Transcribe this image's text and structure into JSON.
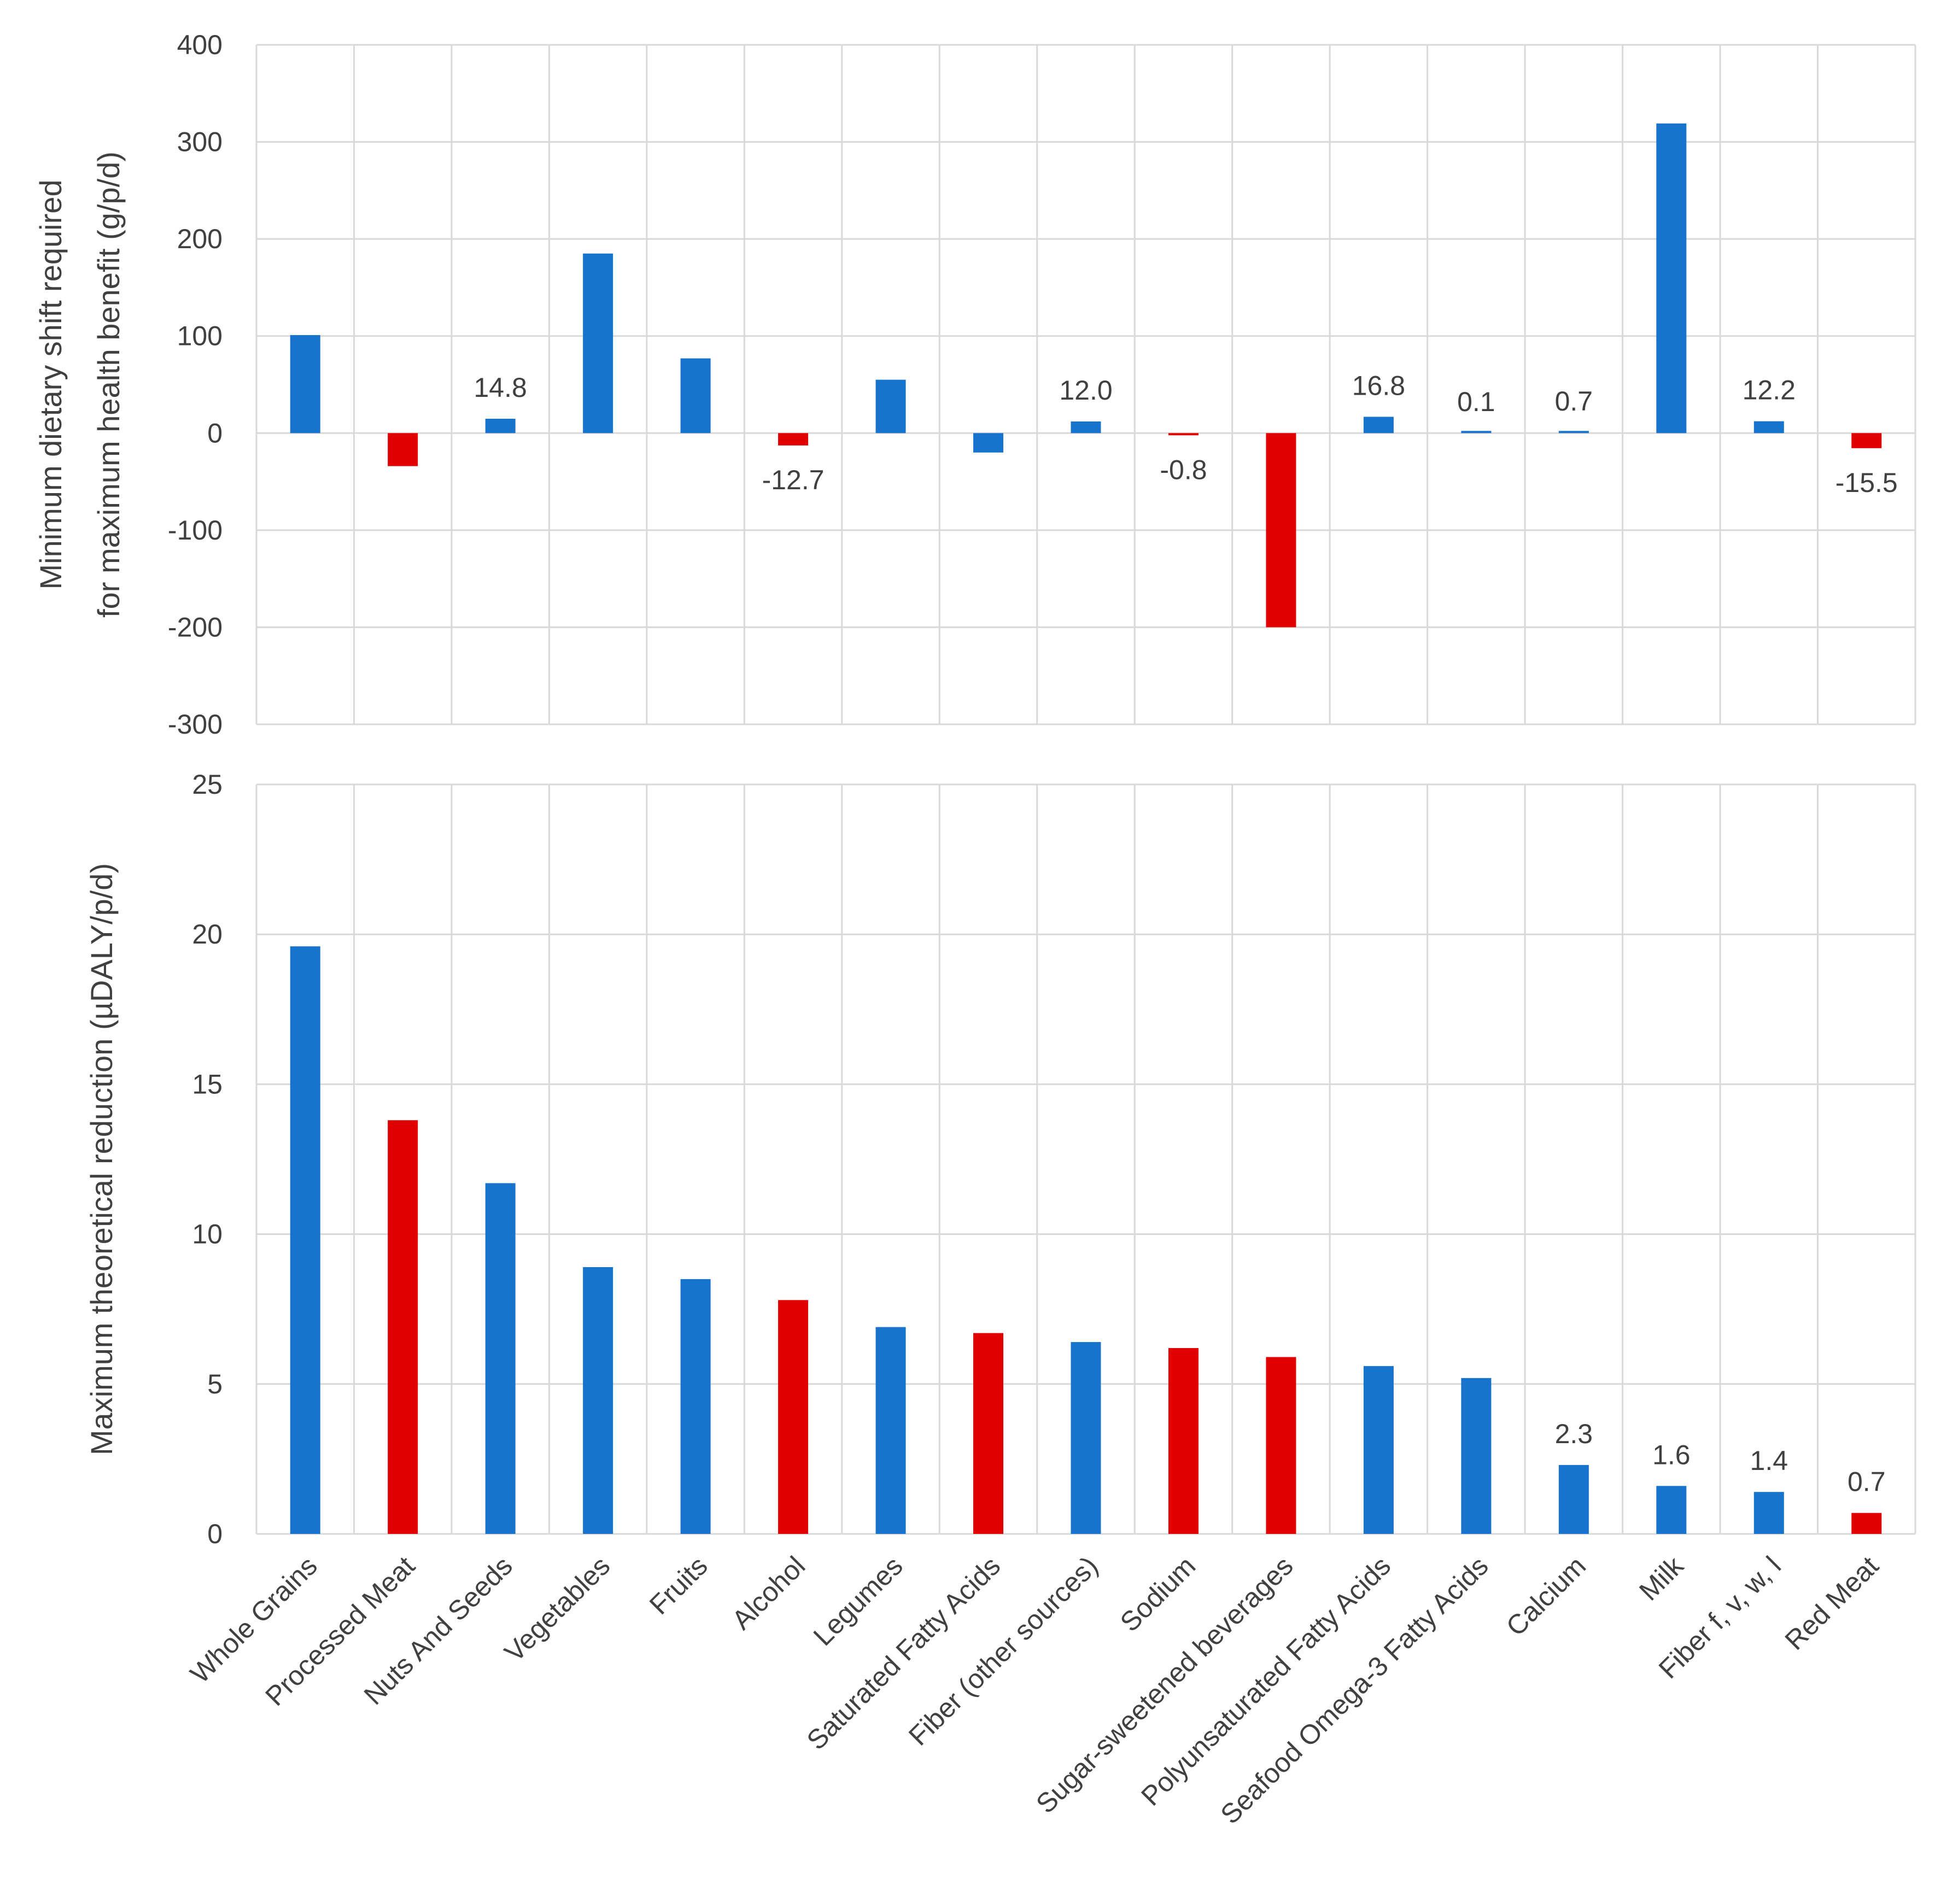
{
  "colors": {
    "increase": "#1773cb",
    "decrease": "#e00000",
    "grid": "#d9d9d9",
    "text": "#404040"
  },
  "chart_data": [
    {
      "type": "bar",
      "title": "",
      "xlabel": "",
      "ylabel_lines": [
        "Minimum dietary shift required",
        "for maximum health benefit  (g/p/d)"
      ],
      "ylim": [
        -300,
        400
      ],
      "yticks": [
        400,
        300,
        200,
        100,
        0,
        -100,
        -200,
        -300
      ],
      "ytick_labels": [
        "400",
        "300",
        "200",
        "100",
        "0",
        "-100",
        "-200",
        "-300"
      ],
      "grid": true,
      "categories": [
        "Whole Grains",
        "Processed Meat",
        "Nuts And Seeds",
        "Vegetables",
        "Fruits",
        "Alcohol",
        "Legumes",
        "Saturated Fatty Acids",
        "Fiber (other sources)",
        "Sodium",
        "Sugar-sweetened beverages",
        "Polyunsaturated Fatty Acids",
        "Seafood Omega-3 Fatty Acids",
        "Calcium",
        "Milk",
        "Fiber f, v, w, l",
        "Red Meat"
      ],
      "values": [
        101,
        -34,
        14.8,
        185,
        77,
        -12.7,
        55,
        -20,
        12.0,
        -0.8,
        -200,
        16.8,
        0.1,
        0.7,
        319,
        12.2,
        -15.5
      ],
      "colors": [
        "increase",
        "decrease",
        "increase",
        "increase",
        "increase",
        "decrease",
        "increase",
        "increase",
        "increase",
        "decrease",
        "decrease",
        "increase",
        "increase",
        "increase",
        "increase",
        "increase",
        "decrease"
      ],
      "data_labels": [
        "",
        "",
        "14.8",
        "",
        "",
        "-12.7",
        "",
        "",
        "12.0",
        "-0.8",
        "",
        "16.8",
        "0.1",
        "0.7",
        "",
        "12.2",
        "-15.5"
      ]
    },
    {
      "type": "bar",
      "title": "",
      "xlabel": "",
      "ylabel_lines": [
        "Maximum theoretical reduction (µDALY/p/d)"
      ],
      "ylim": [
        0,
        25
      ],
      "yticks": [
        25,
        20,
        15,
        10,
        5,
        0
      ],
      "ytick_labels": [
        "25",
        "20",
        "15",
        "10",
        "5",
        "0"
      ],
      "grid": true,
      "categories": [
        "Whole Grains",
        "Processed Meat",
        "Nuts And Seeds",
        "Vegetables",
        "Fruits",
        "Alcohol",
        "Legumes",
        "Saturated Fatty Acids",
        "Fiber (other sources)",
        "Sodium",
        "Sugar-sweetened beverages",
        "Polyunsaturated Fatty Acids",
        "Seafood Omega-3 Fatty Acids",
        "Calcium",
        "Milk",
        "Fiber f, v, w, l",
        "Red Meat"
      ],
      "values": [
        19.6,
        13.8,
        11.7,
        8.9,
        8.5,
        7.8,
        6.9,
        6.7,
        6.4,
        6.2,
        5.9,
        5.6,
        5.2,
        2.3,
        1.6,
        1.4,
        0.7
      ],
      "colors": [
        "increase",
        "decrease",
        "increase",
        "increase",
        "increase",
        "decrease",
        "increase",
        "decrease",
        "increase",
        "decrease",
        "decrease",
        "increase",
        "increase",
        "increase",
        "increase",
        "increase",
        "decrease"
      ],
      "data_labels": [
        "",
        "",
        "",
        "",
        "",
        "",
        "",
        "",
        "",
        "",
        "",
        "",
        "",
        "2.3",
        "1.6",
        "1.4",
        "0.7"
      ]
    }
  ]
}
